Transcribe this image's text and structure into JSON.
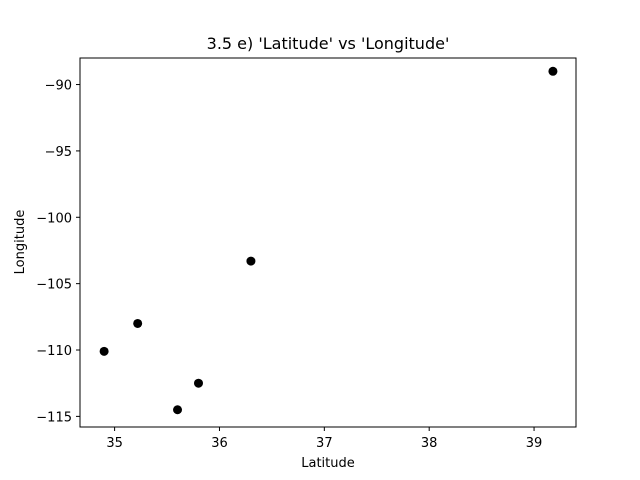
{
  "chart_data": {
    "type": "scatter",
    "title": "3.5 e) 'Latitude' vs 'Longitude'",
    "xlabel": "Latitude",
    "ylabel": "Longitude",
    "xlim": [
      34.67,
      39.4
    ],
    "ylim": [
      -115.8,
      -88.0
    ],
    "xticks": [
      35,
      36,
      37,
      38,
      39
    ],
    "yticks": [
      -115,
      -110,
      -105,
      -100,
      -95,
      -90
    ],
    "xtick_labels": [
      "35",
      "36",
      "37",
      "38",
      "39"
    ],
    "ytick_labels": [
      "−115",
      "−110",
      "−105",
      "−100",
      "−95",
      "−90"
    ],
    "grid": false,
    "marker_color": "#000000",
    "points": [
      {
        "x": 39.18,
        "y": -89.0
      },
      {
        "x": 36.3,
        "y": -103.3
      },
      {
        "x": 35.22,
        "y": -108.0
      },
      {
        "x": 34.9,
        "y": -110.1
      },
      {
        "x": 35.8,
        "y": -112.5
      },
      {
        "x": 35.6,
        "y": -114.5
      }
    ]
  }
}
